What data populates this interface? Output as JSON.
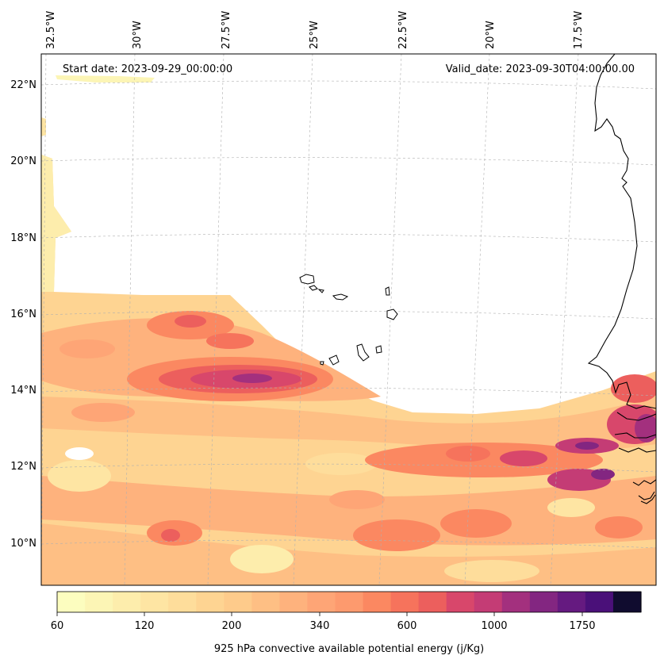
{
  "annotations": {
    "start_date": "Start date: 2023-09-29_00:00:00",
    "valid_date": "Valid_date: 2023-09-30T04:00:00.00"
  },
  "map": {
    "region": "Eastern tropical Atlantic off West Africa",
    "field": "925 hPa convective available potential energy",
    "projection": "conic",
    "gridlines": "dashed gray",
    "lon_labels": [
      "32.5°W",
      "30°W",
      "27.5°W",
      "25°W",
      "22.5°W",
      "20°W",
      "17.5°W"
    ],
    "lat_labels": [
      "22°N",
      "20°N",
      "18°N",
      "16°N",
      "14°N",
      "12°N",
      "10°N"
    ],
    "lon_range": [
      -32.5,
      -15.5
    ],
    "lat_range": [
      9,
      22.8
    ],
    "coastline_color": "#000000",
    "masked_region_color": "#ffffff"
  },
  "colorbar": {
    "label": "925 hPa convective available potential energy (j/Kg)",
    "tick_labels": [
      "60",
      "120",
      "200",
      "340",
      "600",
      "1000",
      "1750"
    ],
    "colors": [
      "#fcfdbf",
      "#fcf5b5",
      "#fdedac",
      "#fee5a3",
      "#fedd9b",
      "#fed492",
      "#fecb8b",
      "#febf84",
      "#feb27d",
      "#fea576",
      "#fd9a6e",
      "#fb8861",
      "#f6735c",
      "#ec5f5d",
      "#d8476b",
      "#c43c75",
      "#a3307e",
      "#832681",
      "#651a80",
      "#4a1079",
      "#100c2f"
    ],
    "orientation": "horizontal"
  }
}
